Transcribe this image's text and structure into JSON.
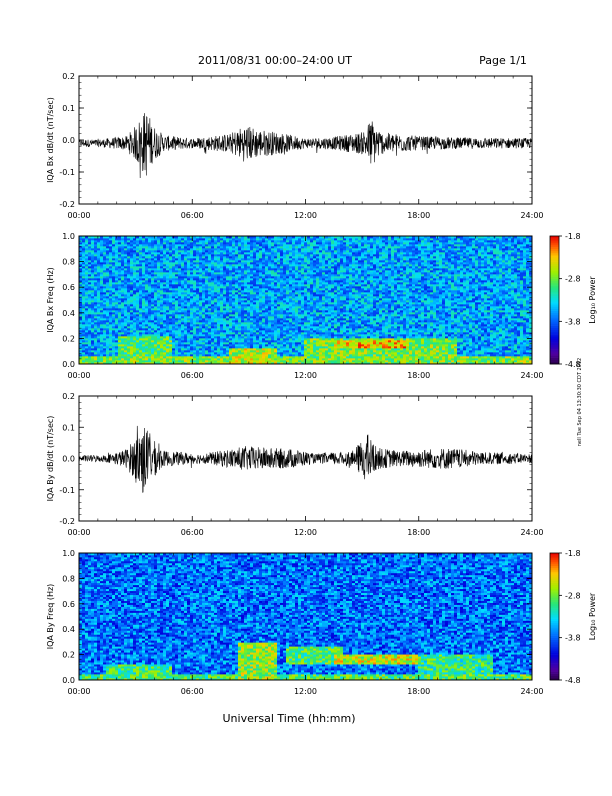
{
  "header": {
    "title": "2011/08/31  00:00–24:00 UT",
    "page": "Page 1/1"
  },
  "side_note": "nell Tue Sep 04 13:30:30 CDT 2012",
  "common_x": {
    "label": "Universal Time (hh:mm)",
    "ticks": [
      "00:00",
      "06:00",
      "12:00",
      "18:00",
      "24:00"
    ],
    "hours": [
      0,
      6,
      12,
      18,
      24
    ],
    "xlim": [
      0,
      24
    ]
  },
  "chart_data": [
    {
      "type": "line",
      "id": "bx-waveform",
      "ylabel": "IQA Bx dB/dt (nT/sec)",
      "ylim": [
        -0.2,
        0.2
      ],
      "yticks": [
        -0.2,
        -0.1,
        0.0,
        0.1,
        0.2
      ],
      "ytick_labels": [
        "-0.2",
        "-0.1",
        "0.0",
        "0.1",
        "0.2"
      ],
      "baseline": -0.01,
      "color": "#000000",
      "envelope": [
        {
          "h": 0.0,
          "amp": 0.012
        },
        {
          "h": 1.0,
          "amp": 0.012
        },
        {
          "h": 2.5,
          "amp": 0.022
        },
        {
          "h": 3.0,
          "amp": 0.055
        },
        {
          "h": 3.3,
          "amp": 0.09
        },
        {
          "h": 3.6,
          "amp": 0.11
        },
        {
          "h": 3.9,
          "amp": 0.06
        },
        {
          "h": 4.5,
          "amp": 0.025
        },
        {
          "h": 6.0,
          "amp": 0.016
        },
        {
          "h": 8.0,
          "amp": 0.03
        },
        {
          "h": 8.8,
          "amp": 0.06
        },
        {
          "h": 9.5,
          "amp": 0.045
        },
        {
          "h": 10.5,
          "amp": 0.035
        },
        {
          "h": 12.0,
          "amp": 0.016
        },
        {
          "h": 13.5,
          "amp": 0.02
        },
        {
          "h": 15.0,
          "amp": 0.035
        },
        {
          "h": 15.5,
          "amp": 0.08
        },
        {
          "h": 16.0,
          "amp": 0.035
        },
        {
          "h": 18.0,
          "amp": 0.022
        },
        {
          "h": 20.0,
          "amp": 0.018
        },
        {
          "h": 24.0,
          "amp": 0.016
        }
      ]
    },
    {
      "type": "heatmap",
      "id": "bx-spectrogram",
      "ylabel": "IQA Bx Freq (Hz)",
      "ylim": [
        0.0,
        1.0
      ],
      "yticks": [
        0.0,
        0.2,
        0.4,
        0.6,
        0.8,
        1.0
      ],
      "ytick_labels": [
        "0.0",
        "0.2",
        "0.4",
        "0.6",
        "0.8",
        "1.0"
      ],
      "colorbar": {
        "label": "Log₁₀ Power",
        "range": [
          -4.8,
          -1.8
        ],
        "ticks": [
          -4.8,
          -3.8,
          -2.8,
          -1.8
        ],
        "tick_labels": [
          "-4.8",
          "-3.8",
          "-2.8",
          "-1.8"
        ]
      },
      "background_power": -3.55,
      "features": [
        {
          "h0": 0,
          "h1": 24,
          "f0": 0.0,
          "f1": 0.06,
          "power": -2.75
        },
        {
          "h0": 2,
          "h1": 5,
          "f0": 0.0,
          "f1": 0.22,
          "power": -2.9
        },
        {
          "h0": 8,
          "h1": 10.5,
          "f0": 0.0,
          "f1": 0.12,
          "power": -2.6
        },
        {
          "h0": 12,
          "h1": 20,
          "f0": 0.03,
          "f1": 0.2,
          "power": -2.8
        },
        {
          "h0": 13.5,
          "h1": 17.5,
          "f0": 0.13,
          "f1": 0.18,
          "power": -2.3
        }
      ]
    },
    {
      "type": "line",
      "id": "by-waveform",
      "ylabel": "IQA By dB/dt (nT/sec)",
      "ylim": [
        -0.2,
        0.2
      ],
      "yticks": [
        -0.2,
        -0.1,
        0.0,
        0.1,
        0.2
      ],
      "ytick_labels": [
        "-0.2",
        "-0.1",
        "0.0",
        "0.1",
        "0.2"
      ],
      "baseline": 0.0,
      "color": "#000000",
      "envelope": [
        {
          "h": 0.0,
          "amp": 0.01
        },
        {
          "h": 1.5,
          "amp": 0.012
        },
        {
          "h": 2.5,
          "amp": 0.03
        },
        {
          "h": 3.0,
          "amp": 0.07
        },
        {
          "h": 3.4,
          "amp": 0.12
        },
        {
          "h": 3.8,
          "amp": 0.07
        },
        {
          "h": 4.5,
          "amp": 0.025
        },
        {
          "h": 6.5,
          "amp": 0.015
        },
        {
          "h": 7.5,
          "amp": 0.025
        },
        {
          "h": 8.8,
          "amp": 0.04
        },
        {
          "h": 10.0,
          "amp": 0.035
        },
        {
          "h": 11.5,
          "amp": 0.03
        },
        {
          "h": 12.5,
          "amp": 0.015
        },
        {
          "h": 14.5,
          "amp": 0.025
        },
        {
          "h": 15.3,
          "amp": 0.08
        },
        {
          "h": 15.8,
          "amp": 0.035
        },
        {
          "h": 17.0,
          "amp": 0.025
        },
        {
          "h": 19.5,
          "amp": 0.035
        },
        {
          "h": 21.5,
          "amp": 0.02
        },
        {
          "h": 24.0,
          "amp": 0.015
        }
      ]
    },
    {
      "type": "heatmap",
      "id": "by-spectrogram",
      "ylabel": "IQA By Freq (Hz)",
      "ylim": [
        0.0,
        1.0
      ],
      "yticks": [
        0.0,
        0.2,
        0.4,
        0.6,
        0.8,
        1.0
      ],
      "ytick_labels": [
        "0.0",
        "0.2",
        "0.4",
        "0.6",
        "0.8",
        "1.0"
      ],
      "colorbar": {
        "label": "Log₁₀ Power",
        "range": [
          -4.8,
          -1.8
        ],
        "ticks": [
          -4.8,
          -3.8,
          -2.8,
          -1.8
        ],
        "tick_labels": [
          "-4.8",
          "-3.8",
          "-2.8",
          "-1.8"
        ]
      },
      "background_power": -3.75,
      "features": [
        {
          "h0": 0,
          "h1": 24,
          "f0": 0.0,
          "f1": 0.05,
          "power": -2.9
        },
        {
          "h0": 1.5,
          "h1": 5,
          "f0": 0.0,
          "f1": 0.12,
          "power": -3.0
        },
        {
          "h0": 8.5,
          "h1": 10.5,
          "f0": 0.0,
          "f1": 0.3,
          "power": -2.7
        },
        {
          "h0": 11,
          "h1": 14,
          "f0": 0.12,
          "f1": 0.26,
          "power": -2.95
        },
        {
          "h0": 13.5,
          "h1": 18,
          "f0": 0.12,
          "f1": 0.2,
          "power": -2.55
        },
        {
          "h0": 18,
          "h1": 22,
          "f0": 0.05,
          "f1": 0.2,
          "power": -3.05
        }
      ]
    }
  ]
}
